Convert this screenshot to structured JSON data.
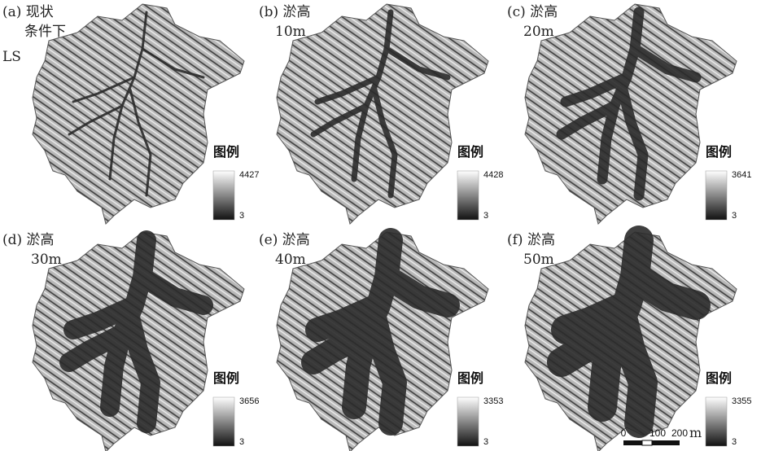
{
  "side_label": "LS",
  "panels": [
    {
      "label": "(a) 现状",
      "label2": "条件下",
      "legend_title": "图例",
      "legend_max": 4427,
      "legend_min": 3
    },
    {
      "label": "(b) 淤高",
      "label2": "10m",
      "legend_title": "图例",
      "legend_max": 4428,
      "legend_min": 3
    },
    {
      "label": "(c) 淤高",
      "label2": "20m",
      "legend_title": "图例",
      "legend_max": 3641,
      "legend_min": 3
    },
    {
      "label": "(d) 淤高",
      "label2": "30m",
      "legend_title": "图例",
      "legend_max": 3656,
      "legend_min": 3
    },
    {
      "label": "(e) 淤高",
      "label2": "40m",
      "legend_title": "图例",
      "legend_max": 3353,
      "legend_min": 3
    },
    {
      "label": "(f) 淤高",
      "label2": "50m",
      "legend_title": "图例",
      "legend_max": 3355,
      "legend_min": 3
    }
  ],
  "scale_bar": {
    "ticks": [
      0,
      100,
      200
    ],
    "unit": "m"
  }
}
